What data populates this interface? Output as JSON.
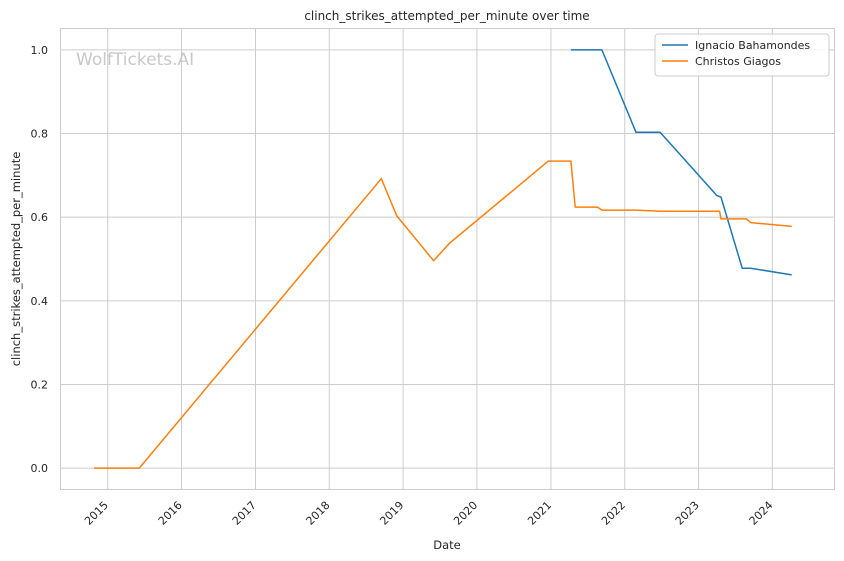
{
  "chart_data": {
    "type": "line",
    "title": "clinch_strikes_attempted_per_minute over time",
    "xlabel": "Date",
    "ylabel": "clinch_strikes_attempted_per_minute",
    "watermark": "WolfTickets.AI",
    "x_ticks": [
      "2015",
      "2016",
      "2017",
      "2018",
      "2019",
      "2020",
      "2021",
      "2022",
      "2023",
      "2024"
    ],
    "y_ticks": [
      "0.0",
      "0.2",
      "0.4",
      "0.6",
      "0.8",
      "1.0"
    ],
    "ylim": [
      -0.05,
      1.05
    ],
    "xlim": [
      "2014-05-15",
      "2024-11-01"
    ],
    "grid": true,
    "legend_position": "top-right",
    "series": [
      {
        "name": "Ignacio Bahamondes",
        "color": "#1f77b4",
        "points": [
          [
            "2021-04-10",
            1.0
          ],
          [
            "2021-09-10",
            1.0
          ],
          [
            "2022-02-26",
            0.803
          ],
          [
            "2022-06-25",
            0.803
          ],
          [
            "2023-04-01",
            0.652
          ],
          [
            "2023-04-22",
            0.648
          ],
          [
            "2023-08-05",
            0.478
          ],
          [
            "2023-09-15",
            0.478
          ],
          [
            "2024-04-06",
            0.462
          ]
        ]
      },
      {
        "name": "Christos Giagos",
        "color": "#ff7f0e",
        "points": [
          [
            "2014-10-25",
            0.0
          ],
          [
            "2015-06-06",
            0.0
          ],
          [
            "2018-09-15",
            0.692
          ],
          [
            "2018-12-01",
            0.603
          ],
          [
            "2019-06-01",
            0.496
          ],
          [
            "2019-08-17",
            0.537
          ],
          [
            "2020-12-19",
            0.734
          ],
          [
            "2021-04-10",
            0.734
          ],
          [
            "2021-05-01",
            0.624
          ],
          [
            "2021-08-20",
            0.624
          ],
          [
            "2021-09-10",
            0.617
          ],
          [
            "2022-02-26",
            0.617
          ],
          [
            "2022-06-25",
            0.614
          ],
          [
            "2023-04-15",
            0.614
          ],
          [
            "2023-04-22",
            0.596
          ],
          [
            "2023-08-26",
            0.596
          ],
          [
            "2023-09-15",
            0.587
          ],
          [
            "2024-04-06",
            0.578
          ]
        ]
      }
    ]
  }
}
